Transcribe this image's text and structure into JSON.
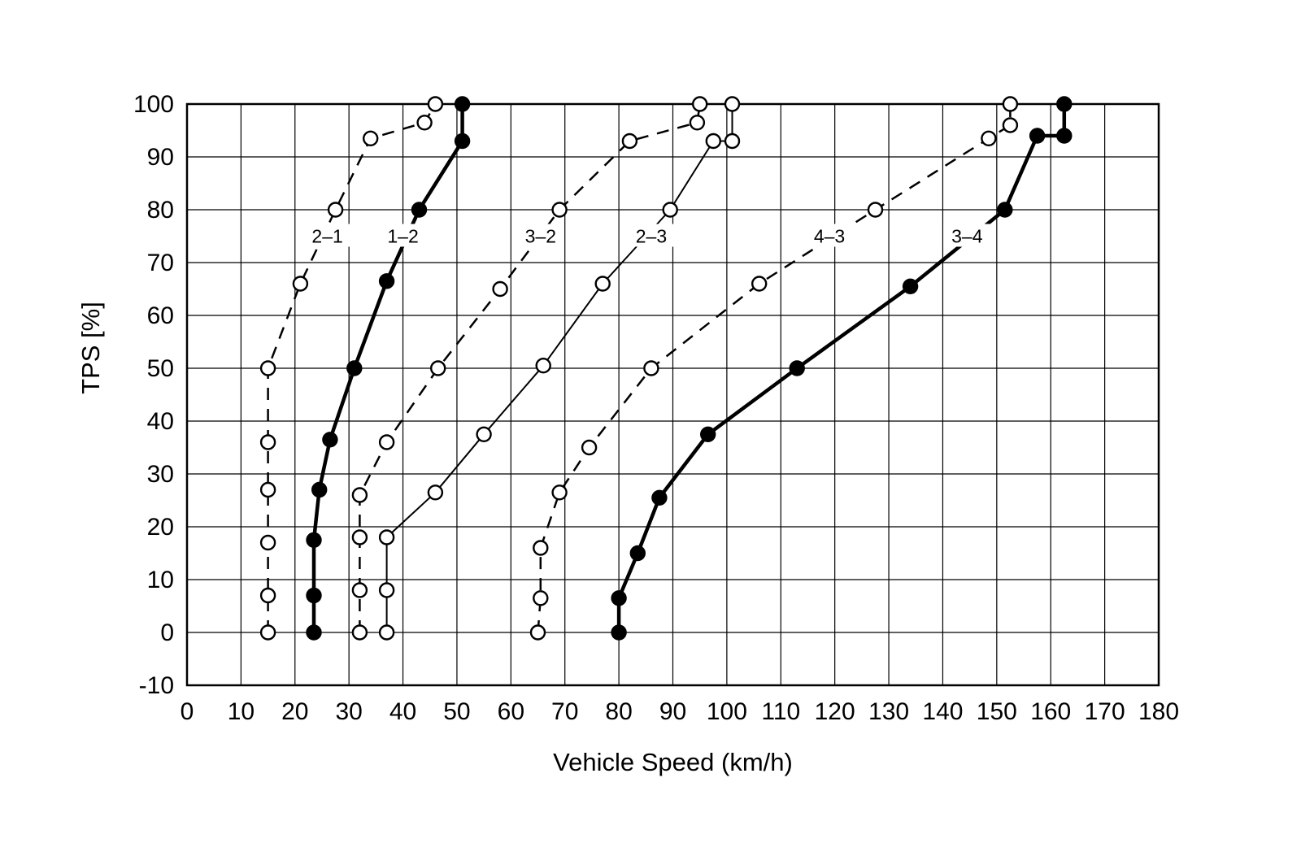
{
  "chart_data": {
    "type": "line",
    "title": "",
    "xlabel": "Vehicle Speed (km/h)",
    "ylabel": "TPS [%]",
    "xlim": [
      0,
      180
    ],
    "ylim": [
      -10,
      100
    ],
    "xticks": [
      0,
      10,
      20,
      30,
      40,
      50,
      60,
      70,
      80,
      90,
      100,
      110,
      120,
      130,
      140,
      150,
      160,
      170,
      180
    ],
    "yticks": [
      -10,
      0,
      10,
      20,
      30,
      40,
      50,
      60,
      70,
      80,
      90,
      100
    ],
    "grid": true,
    "legend_position": "none",
    "background": "#ffffff",
    "axis_color": "#000000",
    "series": [
      {
        "name": "2-1",
        "shift": "downshift",
        "line": "dashed",
        "marker": "open",
        "points": [
          [
            15,
            0
          ],
          [
            15,
            7
          ],
          [
            15,
            17
          ],
          [
            15,
            27
          ],
          [
            15,
            36
          ],
          [
            15,
            50
          ],
          [
            21,
            66
          ],
          [
            27.5,
            80
          ],
          [
            34,
            93.5
          ],
          [
            44,
            96.5
          ],
          [
            46,
            100
          ]
        ]
      },
      {
        "name": "1-2",
        "shift": "upshift",
        "line": "thick",
        "marker": "filled",
        "points": [
          [
            23.5,
            0
          ],
          [
            23.5,
            7
          ],
          [
            23.5,
            17.5
          ],
          [
            24.5,
            27
          ],
          [
            26.5,
            36.5
          ],
          [
            31,
            50
          ],
          [
            37,
            66.5
          ],
          [
            43,
            80
          ],
          [
            51,
            93
          ],
          [
            51,
            100
          ]
        ]
      },
      {
        "name": "3-2",
        "shift": "downshift",
        "line": "dashed",
        "marker": "open",
        "points": [
          [
            32,
            0
          ],
          [
            32,
            8
          ],
          [
            32,
            18
          ],
          [
            32,
            26
          ],
          [
            37,
            36
          ],
          [
            46.5,
            50
          ],
          [
            58,
            65
          ],
          [
            69,
            80
          ],
          [
            82,
            93
          ],
          [
            94.5,
            96.5
          ],
          [
            95,
            100
          ]
        ]
      },
      {
        "name": "2-3",
        "shift": "upshift",
        "line": "thin",
        "marker": "open",
        "points": [
          [
            37,
            0
          ],
          [
            37,
            8
          ],
          [
            37,
            18
          ],
          [
            46,
            26.5
          ],
          [
            55,
            37.5
          ],
          [
            66,
            50.5
          ],
          [
            77,
            66
          ],
          [
            89.5,
            80
          ],
          [
            97.5,
            93
          ],
          [
            101,
            93
          ],
          [
            101,
            100
          ]
        ]
      },
      {
        "name": "4-3",
        "shift": "downshift",
        "line": "dashed",
        "marker": "open",
        "points": [
          [
            65,
            0
          ],
          [
            65.5,
            6.5
          ],
          [
            65.5,
            16
          ],
          [
            69,
            26.5
          ],
          [
            74.5,
            35
          ],
          [
            86,
            50
          ],
          [
            106,
            66
          ],
          [
            127.5,
            80
          ],
          [
            148.5,
            93.5
          ],
          [
            152.5,
            96
          ],
          [
            152.5,
            100
          ]
        ]
      },
      {
        "name": "3-4",
        "shift": "upshift",
        "line": "thick",
        "marker": "filled",
        "points": [
          [
            80,
            0
          ],
          [
            80,
            6.5
          ],
          [
            83.5,
            15
          ],
          [
            87.5,
            25.5
          ],
          [
            96.5,
            37.5
          ],
          [
            113,
            50
          ],
          [
            134,
            65.5
          ],
          [
            151.5,
            80
          ],
          [
            157.5,
            94
          ],
          [
            162.5,
            94
          ],
          [
            162.5,
            100
          ]
        ]
      }
    ],
    "curve_labels": [
      {
        "text": "2–1",
        "x": 26,
        "y": 75
      },
      {
        "text": "1–2",
        "x": 40,
        "y": 75
      },
      {
        "text": "3–2",
        "x": 65.5,
        "y": 75
      },
      {
        "text": "2–3",
        "x": 86,
        "y": 75
      },
      {
        "text": "4–3",
        "x": 119,
        "y": 75
      },
      {
        "text": "3–4",
        "x": 144.5,
        "y": 75
      }
    ]
  }
}
